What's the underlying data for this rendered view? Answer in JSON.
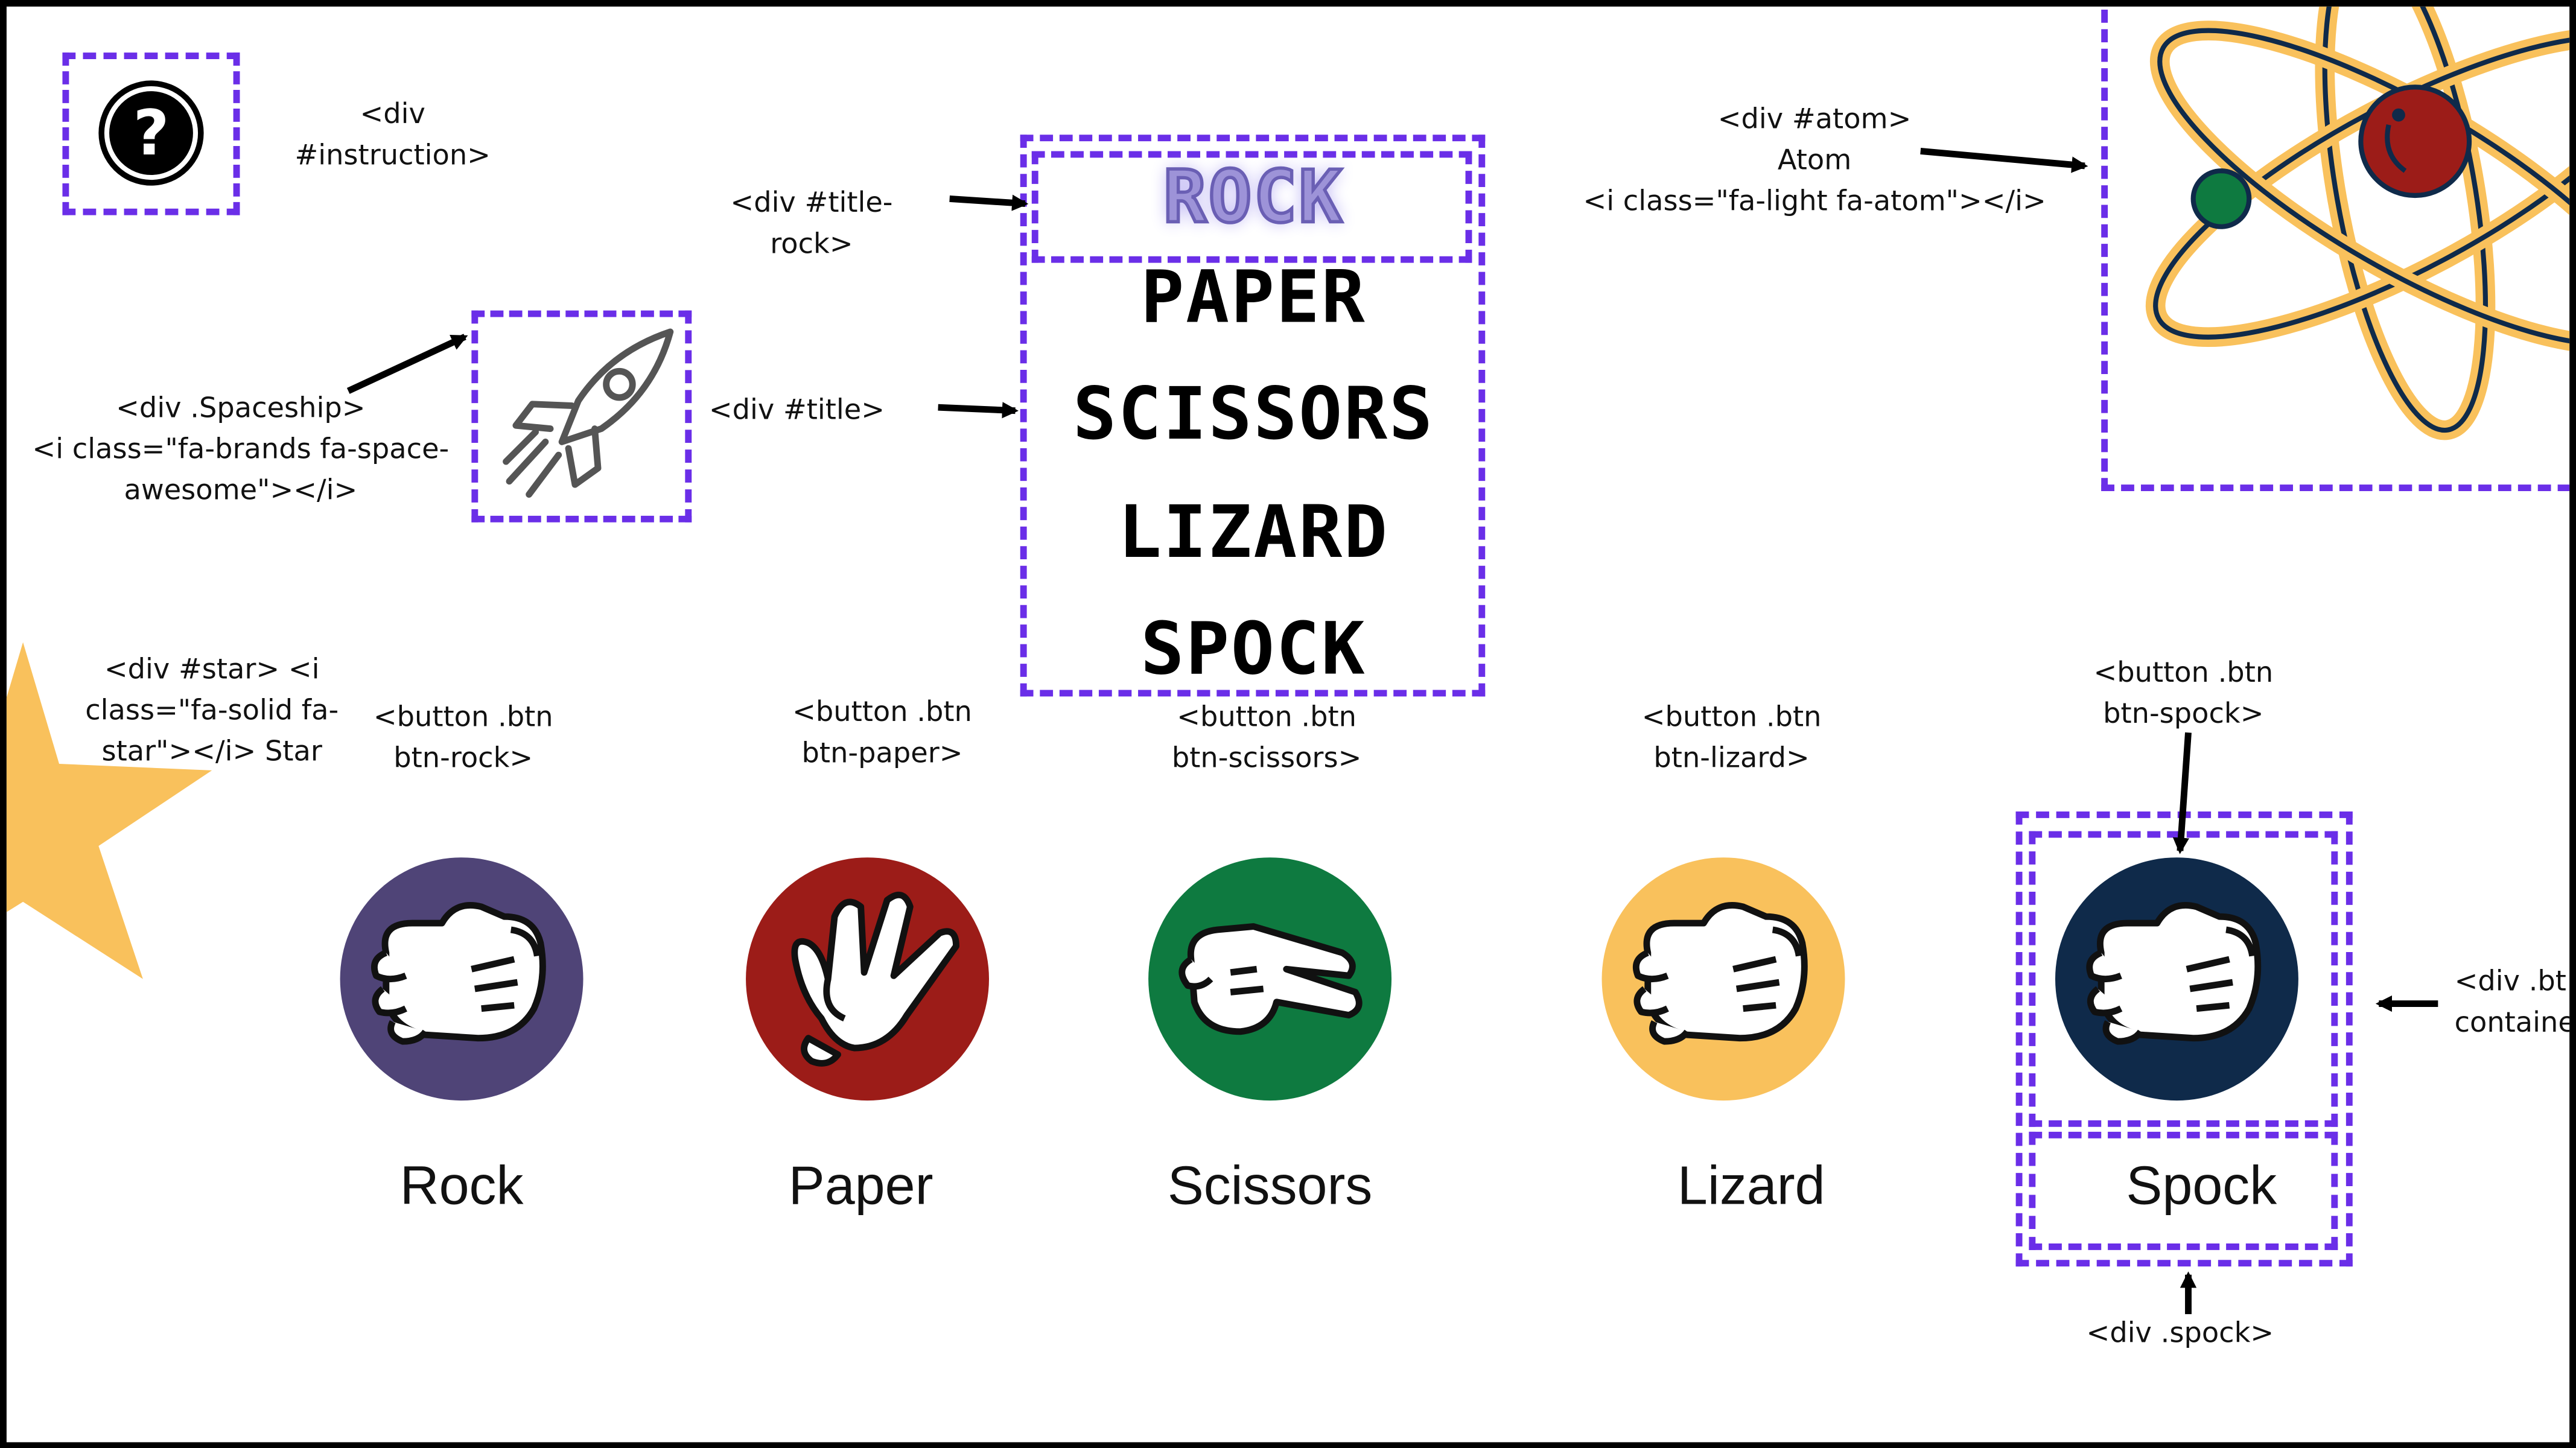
{
  "title_words": [
    "ROCK",
    "PAPER",
    "SCISSORS",
    "LIZARD",
    "SPOCK"
  ],
  "labels": {
    "instruction": [
      "<div",
      "#instruction>"
    ],
    "title_rock": [
      "<div #title-",
      "rock>"
    ],
    "title": "<div #title>",
    "spaceship": [
      "<div .Spaceship>",
      "<i class=\"fa-brands fa-space-",
      "awesome\"></i>"
    ],
    "atom": [
      "<div #atom>",
      "Atom",
      "<i class=\"fa-light fa-atom\"></i>"
    ],
    "star": [
      "<div #star> <i",
      "class=\"fa-solid fa-",
      "star\"></i> Star"
    ],
    "btn_rock": [
      "<button .btn",
      "btn-rock>"
    ],
    "btn_paper": [
      "<button .btn",
      "btn-paper>"
    ],
    "btn_scissors": [
      "<button .btn",
      "btn-scissors>"
    ],
    "btn_lizard": [
      "<button .btn",
      "btn-lizard>"
    ],
    "btn_spock": [
      "<button .btn",
      "btn-spock>"
    ],
    "container": [
      "<div .bt",
      "containe"
    ],
    "spock_div": "<div .spock>"
  },
  "buttons": [
    {
      "caption": "Rock",
      "color": "#4f4477"
    },
    {
      "caption": "Paper",
      "color": "#9c1c18"
    },
    {
      "caption": "Scissors",
      "color": "#0e7a40"
    },
    {
      "caption": "Lizard",
      "color": "#f9c15c"
    },
    {
      "caption": "Spock",
      "color": "#0f2a4a"
    }
  ],
  "colors": {
    "dash": "#6a2ee8",
    "star": "#f9c15c",
    "atom_orbit": "#f9c15c",
    "atom_nucleus": "#9c1c18",
    "atom_electron": "#0e7a40"
  },
  "icons": [
    "question-icon",
    "rocket-icon",
    "atom-icon",
    "star-icon",
    "fist-icon",
    "open-hand-icon",
    "scissors-hand-icon"
  ]
}
